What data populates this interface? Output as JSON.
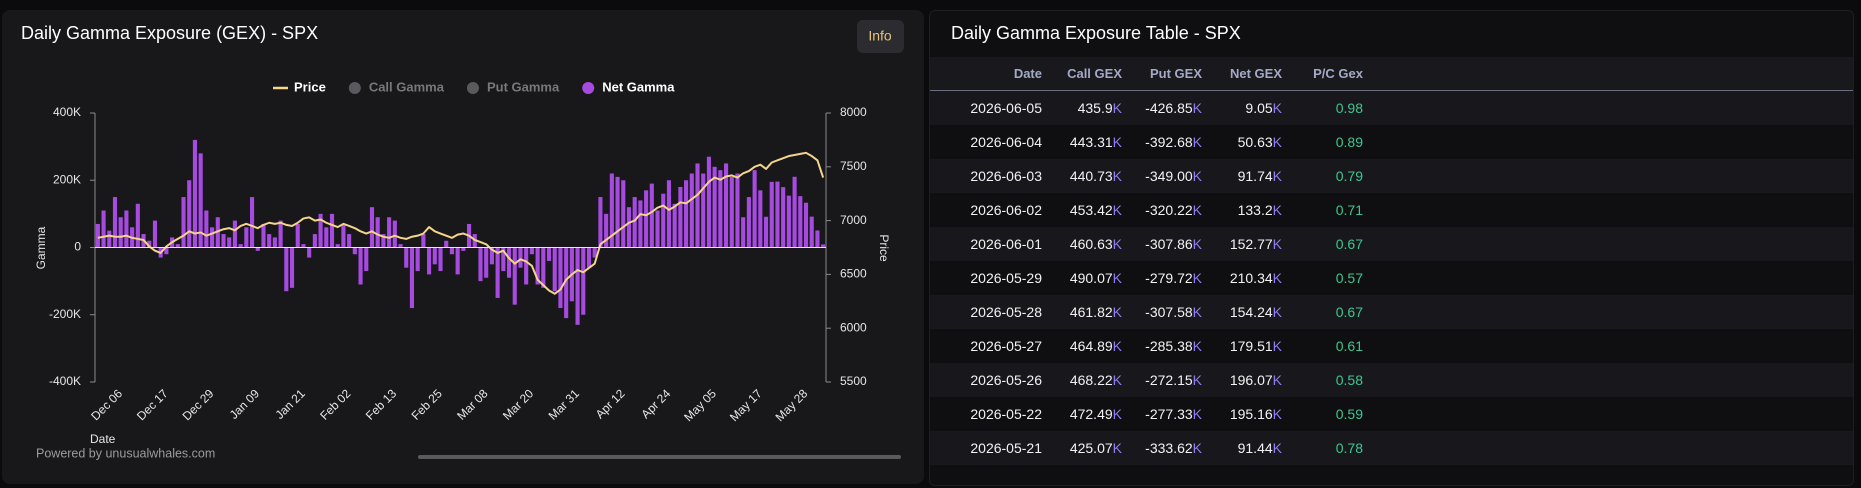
{
  "chart_data": {
    "type": "bar",
    "title": "Daily Gamma Exposure (GEX) - SPX",
    "x_label": "Date",
    "y_label": "Gamma",
    "y2_label": "Price",
    "categories": [
      null,
      null,
      null,
      null,
      "Dec 06",
      null,
      null,
      null,
      null,
      null,
      null,
      null,
      "Dec 17",
      null,
      null,
      null,
      null,
      null,
      null,
      null,
      "Dec 29",
      null,
      null,
      null,
      null,
      null,
      null,
      null,
      "Jan 09",
      null,
      null,
      null,
      null,
      null,
      null,
      null,
      "Jan 21",
      null,
      null,
      null,
      null,
      null,
      null,
      null,
      "Feb 02",
      null,
      null,
      null,
      null,
      null,
      null,
      null,
      "Feb 13",
      null,
      null,
      null,
      null,
      null,
      null,
      null,
      "Feb 25",
      null,
      null,
      null,
      null,
      null,
      null,
      null,
      "Mar 08",
      null,
      null,
      null,
      null,
      null,
      null,
      null,
      "Mar 20",
      null,
      null,
      null,
      null,
      null,
      null,
      null,
      "Mar 31",
      null,
      null,
      null,
      null,
      null,
      null,
      null,
      "Apr 12",
      null,
      null,
      null,
      null,
      null,
      null,
      null,
      "Apr 24",
      null,
      null,
      null,
      null,
      null,
      null,
      null,
      "May 05",
      null,
      null,
      null,
      null,
      null,
      null,
      null,
      "May 17",
      null,
      null,
      null,
      null,
      null,
      null,
      null,
      "May 28",
      null,
      null,
      null
    ],
    "series": [
      {
        "name": "Price",
        "type": "line",
        "axis": "y2",
        "color": "#f3d58c",
        "values": [
          6840,
          6850,
          6860,
          6850,
          6850,
          6860,
          6840,
          6830,
          6820,
          6760,
          6720,
          6700,
          6760,
          6800,
          6830,
          6860,
          6900,
          6880,
          6890,
          6860,
          6880,
          6900,
          6920,
          6930,
          6910,
          6950,
          6970,
          6950,
          6930,
          6960,
          6980,
          6970,
          6980,
          6960,
          6950,
          6980,
          7020,
          7030,
          7000,
          7010,
          6980,
          6960,
          6940,
          6970,
          6950,
          6930,
          6900,
          6880,
          6900,
          6870,
          6850,
          6840,
          6860,
          6840,
          6830,
          6850,
          6860,
          6880,
          6940,
          6900,
          6880,
          6860,
          6840,
          6870,
          6880,
          6860,
          6820,
          6800,
          6780,
          6730,
          6700,
          6720,
          6650,
          6600,
          6640,
          6620,
          6580,
          6450,
          6400,
          6350,
          6320,
          6360,
          6450,
          6500,
          6540,
          6520,
          6560,
          6600,
          6780,
          6820,
          6860,
          6900,
          6940,
          6980,
          7000,
          7060,
          7050,
          7080,
          7120,
          7140,
          7100,
          7130,
          7170,
          7160,
          7200,
          7240,
          7300,
          7360,
          7400,
          7380,
          7410,
          7420,
          7400,
          7440,
          7460,
          7500,
          7520,
          7480,
          7540,
          7560,
          7580,
          7600,
          7610,
          7620,
          7630,
          7600,
          7560,
          7400
        ]
      },
      {
        "name": "Call Gamma",
        "type": "bar",
        "hidden": true,
        "color": "#5a5a5e"
      },
      {
        "name": "Put Gamma",
        "type": "bar",
        "hidden": true,
        "color": "#5a5a5e"
      },
      {
        "name": "Net Gamma",
        "type": "bar",
        "axis": "y",
        "color": "#a64ae0",
        "values": [
          70000,
          110000,
          50000,
          150000,
          90000,
          110000,
          60000,
          130000,
          40000,
          20000,
          80000,
          -30000,
          -20000,
          30000,
          10000,
          150000,
          200000,
          320000,
          280000,
          110000,
          60000,
          90000,
          40000,
          30000,
          80000,
          10000,
          60000,
          150000,
          -10000,
          70000,
          40000,
          30000,
          80000,
          -130000,
          -120000,
          70000,
          10000,
          -30000,
          40000,
          100000,
          60000,
          100000,
          10000,
          70000,
          40000,
          -20000,
          -110000,
          -70000,
          120000,
          90000,
          40000,
          90000,
          80000,
          10000,
          -60000,
          -180000,
          -70000,
          40000,
          -80000,
          -50000,
          -70000,
          20000,
          -20000,
          -80000,
          -10000,
          70000,
          40000,
          -100000,
          -90000,
          -50000,
          -150000,
          -70000,
          -90000,
          -170000,
          -60000,
          -110000,
          -20000,
          -110000,
          -120000,
          -40000,
          -130000,
          -180000,
          -210000,
          -160000,
          -230000,
          -200000,
          -60000,
          -30000,
          150000,
          100000,
          220000,
          210000,
          200000,
          120000,
          150000,
          140000,
          170000,
          190000,
          110000,
          160000,
          200000,
          130000,
          180000,
          200000,
          220000,
          250000,
          220000,
          270000,
          240000,
          230000,
          250000,
          210000,
          220000,
          90000,
          150000,
          230000,
          170000,
          91440,
          195160,
          196070,
          179510,
          154240,
          210340,
          152770,
          133200,
          91740,
          50630,
          9050
        ]
      }
    ],
    "ylim": [
      -400000,
      400000
    ],
    "yticks": [
      {
        "value": -400000,
        "label": "-400K"
      },
      {
        "value": -200000,
        "label": "-200K"
      },
      0,
      {
        "value": 200000,
        "label": "200K"
      },
      {
        "value": 400000,
        "label": "400K"
      }
    ],
    "y2lim": [
      5500,
      8000
    ],
    "y2ticks": [
      5500,
      6000,
      6500,
      7000,
      7500,
      8000
    ],
    "grid": false,
    "legend": "top"
  },
  "panel": {
    "button": "Info",
    "credit": "Powered by unusualwhales.com"
  },
  "table": {
    "title": "Daily Gamma Exposure Table - SPX",
    "columns": [
      "Date",
      "Call GEX",
      "Put GEX",
      "Net GEX",
      "P/C Gex"
    ],
    "rows": [
      [
        "2026-06-05",
        "435.9K",
        "-426.85K",
        "9.05K",
        "0.98"
      ],
      [
        "2026-06-04",
        "443.31K",
        "-392.68K",
        "50.63K",
        "0.89"
      ],
      [
        "2026-06-03",
        "440.73K",
        "-349.00K",
        "91.74K",
        "0.79"
      ],
      [
        "2026-06-02",
        "453.42K",
        "-320.22K",
        "133.2K",
        "0.71"
      ],
      [
        "2026-06-01",
        "460.63K",
        "-307.86K",
        "152.77K",
        "0.67"
      ],
      [
        "2026-05-29",
        "490.07K",
        "-279.72K",
        "210.34K",
        "0.57"
      ],
      [
        "2026-05-28",
        "461.82K",
        "-307.58K",
        "154.24K",
        "0.67"
      ],
      [
        "2026-05-27",
        "464.89K",
        "-285.38K",
        "179.51K",
        "0.61"
      ],
      [
        "2026-05-26",
        "468.22K",
        "-272.15K",
        "196.07K",
        "0.58"
      ],
      [
        "2026-05-22",
        "472.49K",
        "-277.33K",
        "195.16K",
        "0.59"
      ],
      [
        "2026-05-21",
        "425.07K",
        "-333.62K",
        "91.44K",
        "0.78"
      ]
    ]
  }
}
